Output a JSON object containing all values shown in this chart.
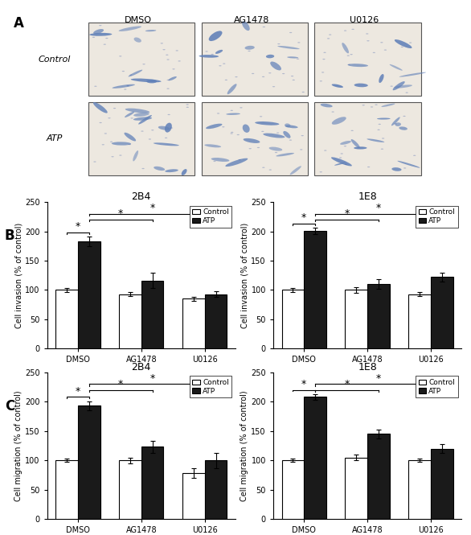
{
  "panel_A_label": "A",
  "panel_B_label": "B",
  "panel_C_label": "C",
  "image_col_labels": [
    "DMSO",
    "AG1478",
    "U0126"
  ],
  "image_row_labels": [
    "Control",
    "ATP"
  ],
  "subplot_titles_B": [
    "2B4",
    "1E8"
  ],
  "subplot_titles_C": [
    "2B4",
    "1E8"
  ],
  "ylabel_invasion": "Cell invasion (% of control)",
  "ylabel_migration": "Cell migration (% of control)",
  "xlabels": [
    "DMSO",
    "AG1478",
    "U0126"
  ],
  "ylim": [
    0,
    250
  ],
  "yticks": [
    0,
    50,
    100,
    150,
    200,
    250
  ],
  "bar_width": 0.35,
  "control_color": "#ffffff",
  "atp_color": "#1a1a1a",
  "edge_color": "#000000",
  "B_2B4_control": [
    100,
    93,
    85
  ],
  "B_2B4_atp": [
    183,
    116,
    93
  ],
  "B_2B4_control_err": [
    3,
    3,
    3
  ],
  "B_2B4_atp_err": [
    8,
    13,
    5
  ],
  "B_1E8_control": [
    100,
    100,
    93
  ],
  "B_1E8_atp": [
    201,
    110,
    122
  ],
  "B_1E8_control_err": [
    3,
    5,
    3
  ],
  "B_1E8_atp_err": [
    5,
    8,
    8
  ],
  "C_2B4_control": [
    100,
    100,
    78
  ],
  "C_2B4_atp": [
    193,
    123,
    100
  ],
  "C_2B4_control_err": [
    3,
    5,
    8
  ],
  "C_2B4_atp_err": [
    8,
    10,
    13
  ],
  "C_1E8_control": [
    100,
    105,
    100
  ],
  "C_1E8_atp": [
    208,
    145,
    120
  ],
  "C_1E8_control_err": [
    3,
    5,
    3
  ],
  "C_1E8_atp_err": [
    5,
    8,
    8
  ],
  "significance_star": "*",
  "legend_control": "Control",
  "legend_atp": "ATP"
}
